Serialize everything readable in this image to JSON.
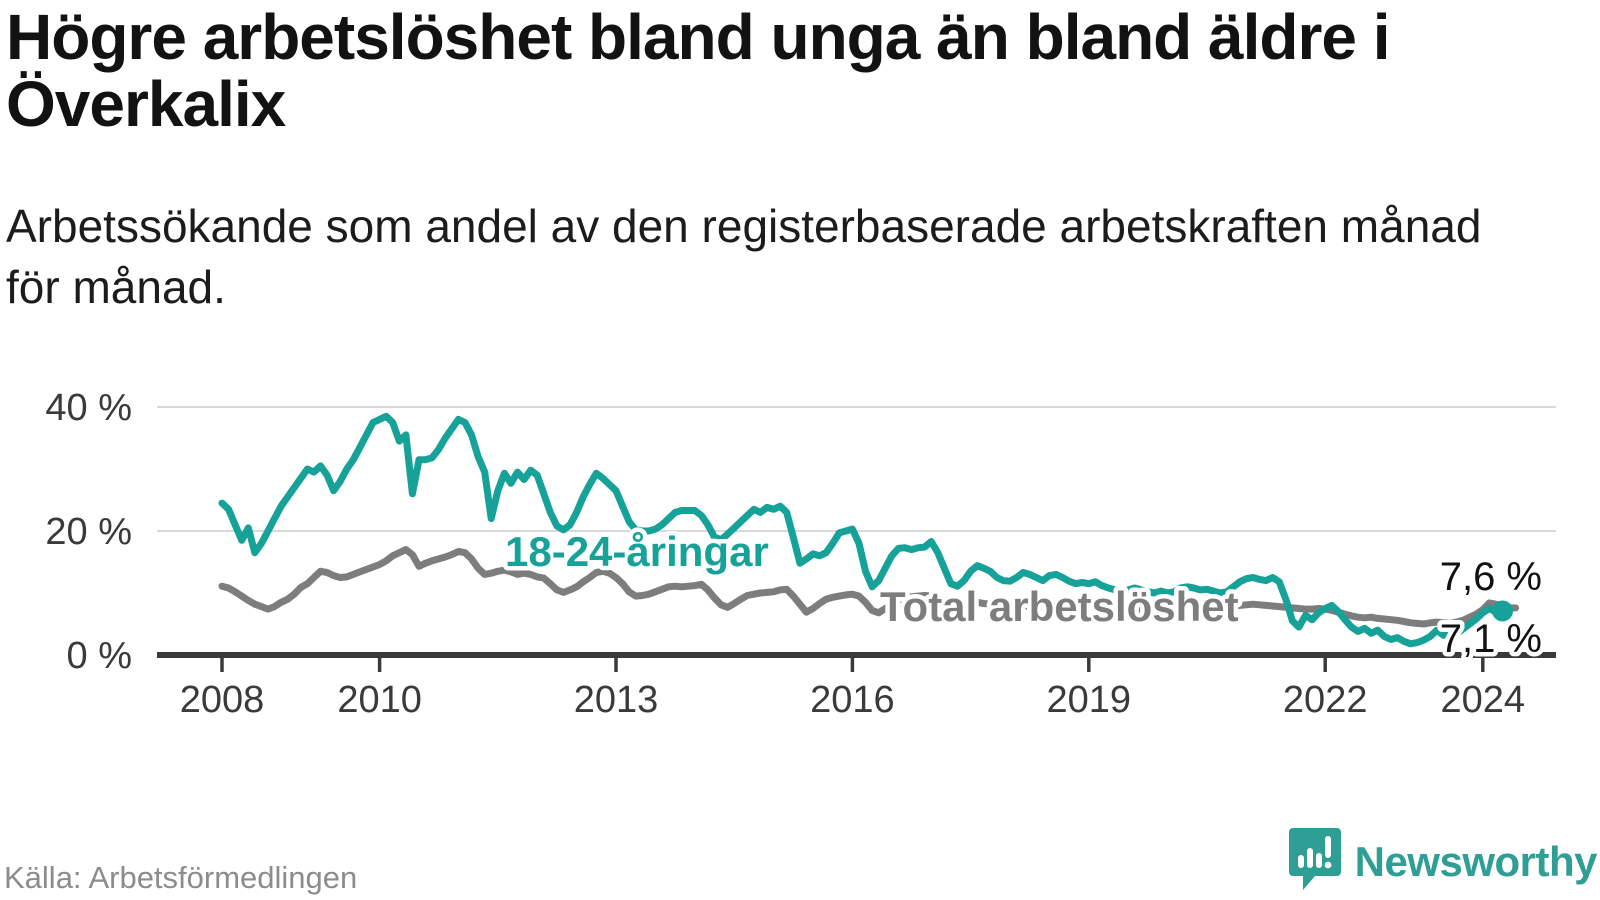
{
  "header": {
    "title_lines": [
      "Högre arbetslöshet bland unga än bland äldre i",
      "Överkalix"
    ],
    "subtitle_lines": [
      "Arbetssökande som andel av den registerbaserade arbetskraften månad",
      "för månad."
    ]
  },
  "footer": {
    "source": "Källa: Arbetsförmedlingen",
    "brand": "Newsworthy"
  },
  "colors": {
    "accent_teal": "#16a298",
    "secondary_gray": "#7d7d7d",
    "axis": "#3a3a3a",
    "grid": "#d9d9d9",
    "value_label": "#111111",
    "brand_teal": "#2f9e95"
  },
  "chart_data": {
    "type": "line",
    "title": "Högre arbetslöshet bland unga än bland äldre i Överkalix",
    "subtitle": "Arbetssökande som andel av den registerbaserade arbetskraften månad för månad.",
    "unit": "%",
    "frequency": "monthly",
    "x_start": "2008-01",
    "ylim": [
      0,
      40
    ],
    "grid": "horizontal",
    "legend_position": "inline-labels",
    "yticks": [
      {
        "value": 0,
        "label": "0 %"
      },
      {
        "value": 20,
        "label": "20 %"
      },
      {
        "value": 40,
        "label": "40 %"
      }
    ],
    "xticks": [
      {
        "year": 2008,
        "label": "2008"
      },
      {
        "year": 2010,
        "label": "2010"
      },
      {
        "year": 2013,
        "label": "2013"
      },
      {
        "year": 2016,
        "label": "2016"
      },
      {
        "year": 2019,
        "label": "2019"
      },
      {
        "year": 2022,
        "label": "2022"
      },
      {
        "year": 2024,
        "label": "2024"
      }
    ],
    "series": [
      {
        "name": "Total arbetslöshet",
        "color": "#7d7d7d",
        "end_label": "7,6 %",
        "end_marker": false,
        "values": [
          11.1,
          10.8,
          10.2,
          9.5,
          8.8,
          8.2,
          7.8,
          7.4,
          7.8,
          8.5,
          9.0,
          9.8,
          10.9,
          11.5,
          12.5,
          13.5,
          13.3,
          12.8,
          12.5,
          12.6,
          13.0,
          13.4,
          13.8,
          14.2,
          14.6,
          15.2,
          16.0,
          16.5,
          17.0,
          16.2,
          14.3,
          14.8,
          15.2,
          15.5,
          15.8,
          16.2,
          16.7,
          16.5,
          15.5,
          14.0,
          13.0,
          13.2,
          13.5,
          13.7,
          13.4,
          13.0,
          13.2,
          13.0,
          12.6,
          12.4,
          11.5,
          10.5,
          10.1,
          10.5,
          11.0,
          11.8,
          12.5,
          13.3,
          13.5,
          13.2,
          12.5,
          11.5,
          10.2,
          9.5,
          9.6,
          9.8,
          10.2,
          10.6,
          11.0,
          11.1,
          11.0,
          11.1,
          11.2,
          11.4,
          10.5,
          9.2,
          8.1,
          7.7,
          8.3,
          9.0,
          9.6,
          9.8,
          10.0,
          10.1,
          10.2,
          10.5,
          10.6,
          9.5,
          8.2,
          6.9,
          7.5,
          8.3,
          9.0,
          9.3,
          9.5,
          9.7,
          9.8,
          9.5,
          8.5,
          7.2,
          6.8,
          7.5,
          8.2,
          8.8,
          9.2,
          9.4,
          9.5,
          9.6,
          9.5,
          9.3,
          8.8,
          8.2,
          7.8,
          7.9,
          8.2,
          8.5,
          8.3,
          8.2,
          8.0,
          7.9,
          7.8,
          7.9,
          8.0,
          7.8,
          7.6,
          7.4,
          7.5,
          7.7,
          7.6,
          7.5,
          7.4,
          7.5,
          7.4,
          7.5,
          7.4,
          7.2,
          7.1,
          7.0,
          7.2,
          7.3,
          7.2,
          7.1,
          7.2,
          7.3,
          7.4,
          7.5,
          7.8,
          8.2,
          8.4,
          8.3,
          8.2,
          8.0,
          7.9,
          7.8,
          7.9,
          8.0,
          8.1,
          8.2,
          8.1,
          8.0,
          7.9,
          7.8,
          7.7,
          7.6,
          7.5,
          7.4,
          7.4,
          7.5,
          7.4,
          7.2,
          6.9,
          6.6,
          6.3,
          6.1,
          6.0,
          6.1,
          5.9,
          5.8,
          5.7,
          5.6,
          5.4,
          5.2,
          5.1,
          5.0,
          5.2,
          5.3,
          5.2,
          5.1,
          5.3,
          5.6,
          6.1,
          6.6,
          7.3,
          8.4,
          8.2,
          7.8,
          7.6,
          7.6
        ]
      },
      {
        "name": "18-24-åringar",
        "color": "#16a298",
        "end_label": "7,1 %",
        "end_marker": true,
        "values": [
          24.5,
          23.5,
          21.0,
          18.5,
          20.5,
          16.5,
          18.0,
          20.0,
          22.0,
          24.0,
          25.5,
          27.0,
          28.5,
          30.0,
          29.5,
          30.5,
          29.0,
          26.5,
          28.0,
          30.0,
          31.5,
          33.5,
          35.5,
          37.5,
          38.0,
          38.5,
          37.5,
          34.5,
          35.5,
          26.0,
          31.5,
          31.5,
          31.8,
          33.2,
          35.0,
          36.5,
          38.0,
          37.5,
          35.5,
          32.0,
          29.5,
          22.0,
          26.5,
          29.3,
          27.7,
          29.5,
          28.3,
          29.8,
          29.0,
          26.0,
          23.0,
          20.8,
          20.2,
          21.0,
          23.0,
          25.5,
          27.5,
          29.3,
          28.5,
          27.5,
          26.5,
          24.0,
          21.5,
          20.2,
          20.0,
          20.0,
          20.3,
          21.0,
          22.0,
          23.0,
          23.3,
          23.3,
          23.3,
          22.5,
          21.0,
          19.0,
          18.6,
          19.5,
          20.5,
          21.5,
          22.5,
          23.5,
          23.0,
          23.8,
          23.5,
          24.0,
          23.0,
          19.0,
          14.8,
          15.5,
          16.3,
          16.0,
          16.5,
          18.0,
          19.7,
          20.0,
          20.3,
          18.0,
          13.5,
          11.0,
          12.0,
          14.0,
          16.0,
          17.2,
          17.3,
          17.0,
          17.3,
          17.4,
          18.3,
          16.5,
          14.0,
          11.5,
          11.1,
          12.0,
          13.5,
          14.4,
          14.0,
          13.5,
          12.5,
          12.0,
          11.9,
          12.5,
          13.3,
          13.0,
          12.5,
          12.0,
          12.8,
          13.0,
          12.5,
          11.9,
          11.5,
          11.7,
          11.5,
          11.8,
          11.2,
          10.8,
          10.5,
          10.2,
          10.5,
          10.8,
          10.5,
          10.2,
          10.0,
          10.3,
          10.0,
          10.2,
          10.8,
          11.0,
          10.8,
          10.5,
          10.6,
          10.3,
          10.0,
          10.2,
          11.0,
          11.8,
          12.3,
          12.5,
          12.2,
          12.0,
          12.5,
          11.8,
          9.0,
          5.5,
          4.5,
          6.4,
          5.7,
          6.8,
          7.5,
          8.0,
          7.0,
          5.7,
          4.5,
          3.8,
          4.3,
          3.5,
          4.0,
          3.0,
          2.5,
          2.8,
          2.2,
          1.8,
          2.0,
          2.4,
          3.0,
          4.0,
          3.2,
          3.8,
          3.4,
          4.2,
          5.0,
          5.8,
          6.8,
          7.5,
          6.9,
          7.1
        ]
      }
    ]
  }
}
